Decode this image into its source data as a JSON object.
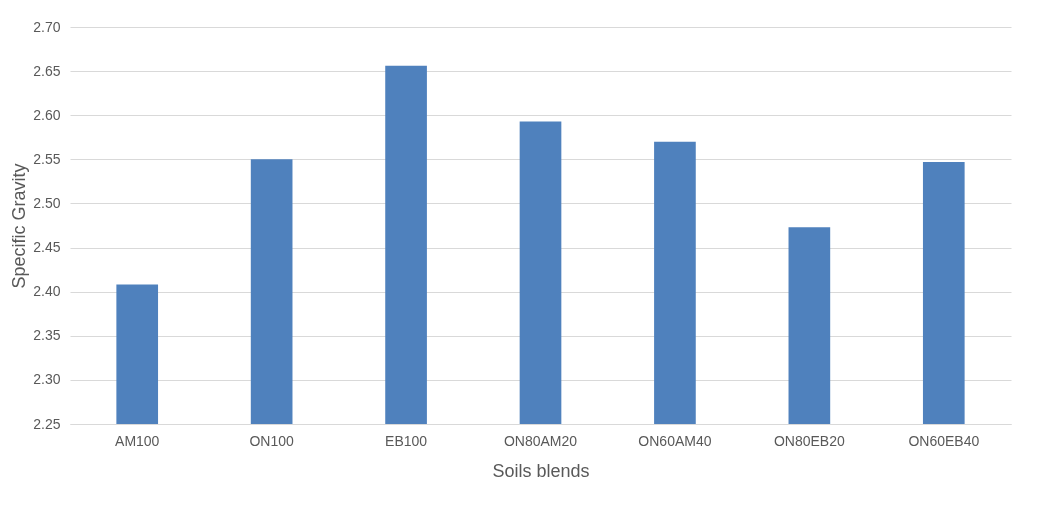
{
  "chart_data": {
    "type": "bar",
    "xlabel": "Soils blends",
    "ylabel": "Specific Gravity",
    "categories": [
      "AM100",
      "ON100",
      "EB100",
      "ON80AM20",
      "ON60AM40",
      "ON80EB20",
      "ON60EB40"
    ],
    "series": [
      {
        "color": "#4f81bd",
        "values": [
          2.408,
          2.55,
          2.656,
          2.593,
          2.57,
          2.473,
          2.547
        ]
      }
    ],
    "ylim": [
      2.25,
      2.7
    ],
    "yticks": [
      2.25,
      {
        "value": 2.3,
        "label": "2.30"
      },
      2.35,
      {
        "value": 2.4,
        "label": "2.40"
      },
      2.45,
      {
        "value": 2.5,
        "label": "2.50"
      },
      2.55,
      {
        "value": 2.6,
        "label": "2.60"
      },
      2.65,
      {
        "value": 2.7,
        "label": "2.70"
      }
    ],
    "grid": "y",
    "legend": false
  }
}
